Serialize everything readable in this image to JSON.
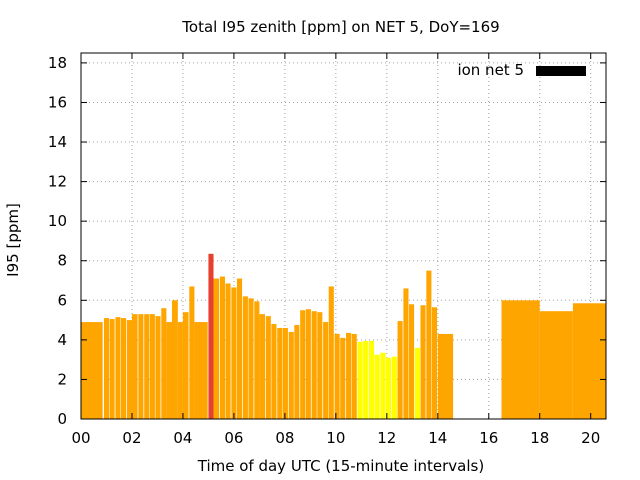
{
  "chart_data": {
    "type": "bar",
    "title": "Total I95 zenith [ppm] on NET 5, DoY=169",
    "xlabel": "Time of day UTC (15-minute intervals)",
    "ylabel": "I95 [ppm]",
    "xlim": [
      0,
      20.6
    ],
    "ylim": [
      0,
      18.5
    ],
    "x_ticks": [
      0,
      2,
      4,
      6,
      8,
      10,
      12,
      14,
      16,
      18,
      20
    ],
    "x_tick_labels": [
      "00",
      "02",
      "04",
      "06",
      "08",
      "10",
      "12",
      "14",
      "16",
      "18",
      "20"
    ],
    "y_ticks": [
      0,
      2,
      4,
      6,
      8,
      10,
      12,
      14,
      16,
      18
    ],
    "y_tick_labels": [
      "0",
      "2",
      "4",
      "6",
      "8",
      "10",
      "12",
      "14",
      "16",
      "18"
    ],
    "grid": true,
    "legend": {
      "position": "top-right",
      "entries": [
        {
          "name": "ion net 5",
          "color": "#000000"
        }
      ]
    },
    "colors": {
      "orange": "#ffa500",
      "yellow": "#ffff00",
      "red": "#e6402e"
    },
    "bars": [
      {
        "x": 0.0,
        "x2": 0.85,
        "value": 4.9,
        "color": "orange"
      },
      {
        "x": 0.9,
        "x2": 1.1,
        "value": 5.1,
        "color": "orange"
      },
      {
        "x": 1.12,
        "x2": 1.32,
        "value": 5.05,
        "color": "orange"
      },
      {
        "x": 1.35,
        "x2": 1.55,
        "value": 5.15,
        "color": "orange"
      },
      {
        "x": 1.57,
        "x2": 1.77,
        "value": 5.1,
        "color": "orange"
      },
      {
        "x": 1.8,
        "x2": 2.0,
        "value": 5.0,
        "color": "orange"
      },
      {
        "x": 2.0,
        "x2": 2.22,
        "value": 5.3,
        "color": "orange"
      },
      {
        "x": 2.25,
        "x2": 2.45,
        "value": 5.3,
        "color": "orange"
      },
      {
        "x": 2.48,
        "x2": 2.68,
        "value": 5.3,
        "color": "orange"
      },
      {
        "x": 2.7,
        "x2": 2.9,
        "value": 5.3,
        "color": "orange"
      },
      {
        "x": 2.92,
        "x2": 3.12,
        "value": 5.2,
        "color": "orange"
      },
      {
        "x": 3.15,
        "x2": 3.35,
        "value": 5.6,
        "color": "orange"
      },
      {
        "x": 3.35,
        "x2": 3.57,
        "value": 4.9,
        "color": "orange"
      },
      {
        "x": 3.57,
        "x2": 3.8,
        "value": 6.0,
        "color": "orange"
      },
      {
        "x": 3.8,
        "x2": 4.0,
        "value": 4.9,
        "color": "orange"
      },
      {
        "x": 4.0,
        "x2": 4.22,
        "value": 5.4,
        "color": "orange"
      },
      {
        "x": 4.25,
        "x2": 4.45,
        "value": 6.7,
        "color": "orange"
      },
      {
        "x": 4.45,
        "x2": 4.97,
        "value": 4.9,
        "color": "orange"
      },
      {
        "x": 5.0,
        "x2": 5.2,
        "value": 8.35,
        "color": "red"
      },
      {
        "x": 5.2,
        "x2": 5.42,
        "value": 7.1,
        "color": "orange"
      },
      {
        "x": 5.45,
        "x2": 5.65,
        "value": 7.2,
        "color": "orange"
      },
      {
        "x": 5.67,
        "x2": 5.87,
        "value": 6.85,
        "color": "orange"
      },
      {
        "x": 5.9,
        "x2": 6.1,
        "value": 6.65,
        "color": "orange"
      },
      {
        "x": 6.12,
        "x2": 6.32,
        "value": 7.1,
        "color": "orange"
      },
      {
        "x": 6.35,
        "x2": 6.55,
        "value": 6.2,
        "color": "orange"
      },
      {
        "x": 6.57,
        "x2": 6.77,
        "value": 6.1,
        "color": "orange"
      },
      {
        "x": 6.8,
        "x2": 7.0,
        "value": 5.95,
        "color": "orange"
      },
      {
        "x": 7.0,
        "x2": 7.22,
        "value": 5.3,
        "color": "orange"
      },
      {
        "x": 7.25,
        "x2": 7.45,
        "value": 5.2,
        "color": "orange"
      },
      {
        "x": 7.47,
        "x2": 7.67,
        "value": 4.8,
        "color": "orange"
      },
      {
        "x": 7.7,
        "x2": 7.9,
        "value": 4.6,
        "color": "orange"
      },
      {
        "x": 7.92,
        "x2": 8.12,
        "value": 4.6,
        "color": "orange"
      },
      {
        "x": 8.15,
        "x2": 8.35,
        "value": 4.4,
        "color": "orange"
      },
      {
        "x": 8.37,
        "x2": 8.57,
        "value": 4.75,
        "color": "orange"
      },
      {
        "x": 8.6,
        "x2": 8.8,
        "value": 5.5,
        "color": "orange"
      },
      {
        "x": 8.82,
        "x2": 9.02,
        "value": 5.55,
        "color": "orange"
      },
      {
        "x": 9.05,
        "x2": 9.25,
        "value": 5.45,
        "color": "orange"
      },
      {
        "x": 9.27,
        "x2": 9.47,
        "value": 5.4,
        "color": "orange"
      },
      {
        "x": 9.5,
        "x2": 9.7,
        "value": 4.9,
        "color": "orange"
      },
      {
        "x": 9.72,
        "x2": 9.92,
        "value": 6.7,
        "color": "orange"
      },
      {
        "x": 9.95,
        "x2": 10.15,
        "value": 4.3,
        "color": "orange"
      },
      {
        "x": 10.17,
        "x2": 10.37,
        "value": 4.1,
        "color": "orange"
      },
      {
        "x": 10.4,
        "x2": 10.6,
        "value": 4.35,
        "color": "orange"
      },
      {
        "x": 10.62,
        "x2": 10.82,
        "value": 4.3,
        "color": "orange"
      },
      {
        "x": 10.85,
        "x2": 11.05,
        "value": 3.9,
        "color": "yellow"
      },
      {
        "x": 11.07,
        "x2": 11.27,
        "value": 3.95,
        "color": "yellow"
      },
      {
        "x": 11.3,
        "x2": 11.5,
        "value": 3.95,
        "color": "yellow"
      },
      {
        "x": 11.52,
        "x2": 11.72,
        "value": 3.25,
        "color": "yellow"
      },
      {
        "x": 11.75,
        "x2": 11.95,
        "value": 3.35,
        "color": "yellow"
      },
      {
        "x": 11.97,
        "x2": 12.17,
        "value": 3.1,
        "color": "yellow"
      },
      {
        "x": 12.2,
        "x2": 12.4,
        "value": 3.15,
        "color": "yellow"
      },
      {
        "x": 12.42,
        "x2": 12.62,
        "value": 4.95,
        "color": "orange"
      },
      {
        "x": 12.65,
        "x2": 12.85,
        "value": 6.6,
        "color": "orange"
      },
      {
        "x": 12.87,
        "x2": 13.07,
        "value": 5.8,
        "color": "orange"
      },
      {
        "x": 13.1,
        "x2": 13.3,
        "value": 3.6,
        "color": "yellow"
      },
      {
        "x": 13.32,
        "x2": 13.52,
        "value": 5.75,
        "color": "orange"
      },
      {
        "x": 13.55,
        "x2": 13.75,
        "value": 7.5,
        "color": "orange"
      },
      {
        "x": 13.77,
        "x2": 13.97,
        "value": 5.65,
        "color": "orange"
      },
      {
        "x": 14.0,
        "x2": 14.6,
        "value": 4.3,
        "color": "orange"
      },
      {
        "x": 16.5,
        "x2": 18.0,
        "value": 6.0,
        "color": "orange"
      },
      {
        "x": 18.0,
        "x2": 19.3,
        "value": 5.45,
        "color": "orange"
      },
      {
        "x": 19.3,
        "x2": 20.6,
        "value": 5.85,
        "color": "orange"
      }
    ]
  }
}
